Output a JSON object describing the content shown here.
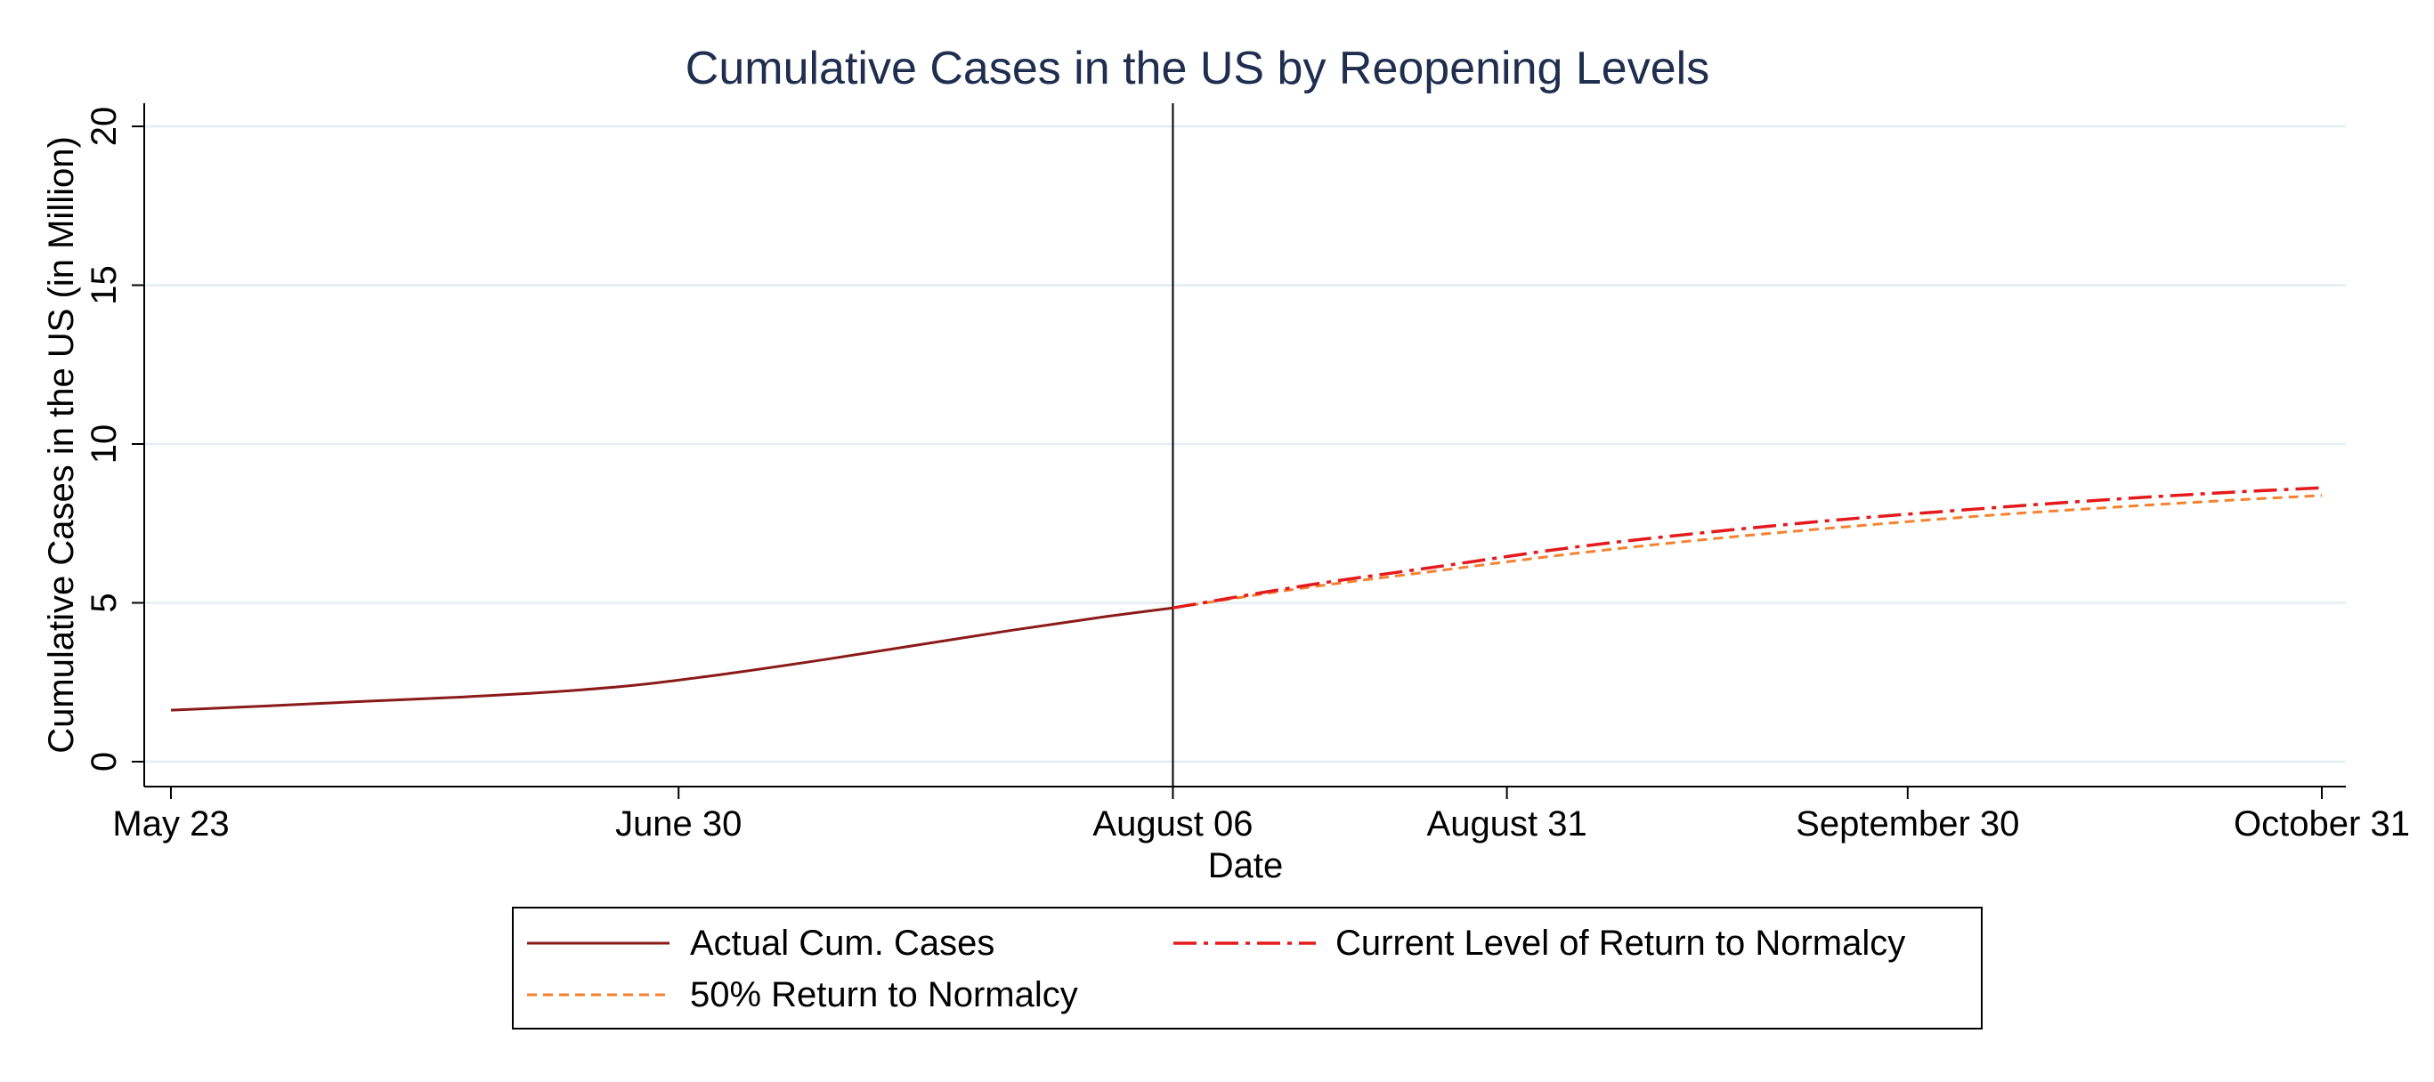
{
  "chart_data": {
    "type": "line",
    "title": "Cumulative Cases in the US by Reopening Levels",
    "xlabel": "Date",
    "ylabel": "Cumulative Cases in the US (in Million)",
    "x_ticks": [
      "May 23",
      "June 30",
      "August 06",
      "August 31",
      "September 30",
      "October 31"
    ],
    "y_ticks": [
      0,
      5,
      10,
      15,
      20
    ],
    "xlim": [
      "2020-05-23",
      "2020-10-31"
    ],
    "ylim": [
      0,
      20
    ],
    "grid": "horizontal",
    "vertical_marker": "2020-08-06",
    "legend_position": "bottom",
    "series": [
      {
        "name": "Actual Cum. Cases",
        "color": "#8b1a1a",
        "style": "solid",
        "x": [
          "2020-05-23",
          "2020-05-30",
          "2020-06-06",
          "2020-06-13",
          "2020-06-20",
          "2020-06-27",
          "2020-07-04",
          "2020-07-11",
          "2020-07-18",
          "2020-07-25",
          "2020-08-01",
          "2020-08-06"
        ],
        "values": [
          1.62,
          1.75,
          1.89,
          2.02,
          2.18,
          2.42,
          2.79,
          3.22,
          3.68,
          4.14,
          4.57,
          4.84
        ]
      },
      {
        "name": "Current Level of Return to Normalcy",
        "color": "#e41a1c",
        "style": "dash-dot",
        "x": [
          "2020-08-06",
          "2020-08-16",
          "2020-08-26",
          "2020-09-05",
          "2020-09-15",
          "2020-09-25",
          "2020-10-05",
          "2020-10-15",
          "2020-10-25",
          "2020-10-31"
        ],
        "values": [
          4.84,
          5.55,
          6.15,
          6.75,
          7.22,
          7.62,
          7.95,
          8.25,
          8.5,
          8.62
        ]
      },
      {
        "name": "50% Return to Normalcy",
        "color": "#f58231",
        "style": "dash",
        "x": [
          "2020-08-06",
          "2020-08-16",
          "2020-08-26",
          "2020-09-05",
          "2020-09-15",
          "2020-09-25",
          "2020-10-05",
          "2020-10-15",
          "2020-10-25",
          "2020-10-31"
        ],
        "values": [
          4.84,
          5.48,
          6.02,
          6.55,
          7.0,
          7.38,
          7.72,
          8.0,
          8.25,
          8.38
        ]
      }
    ]
  }
}
